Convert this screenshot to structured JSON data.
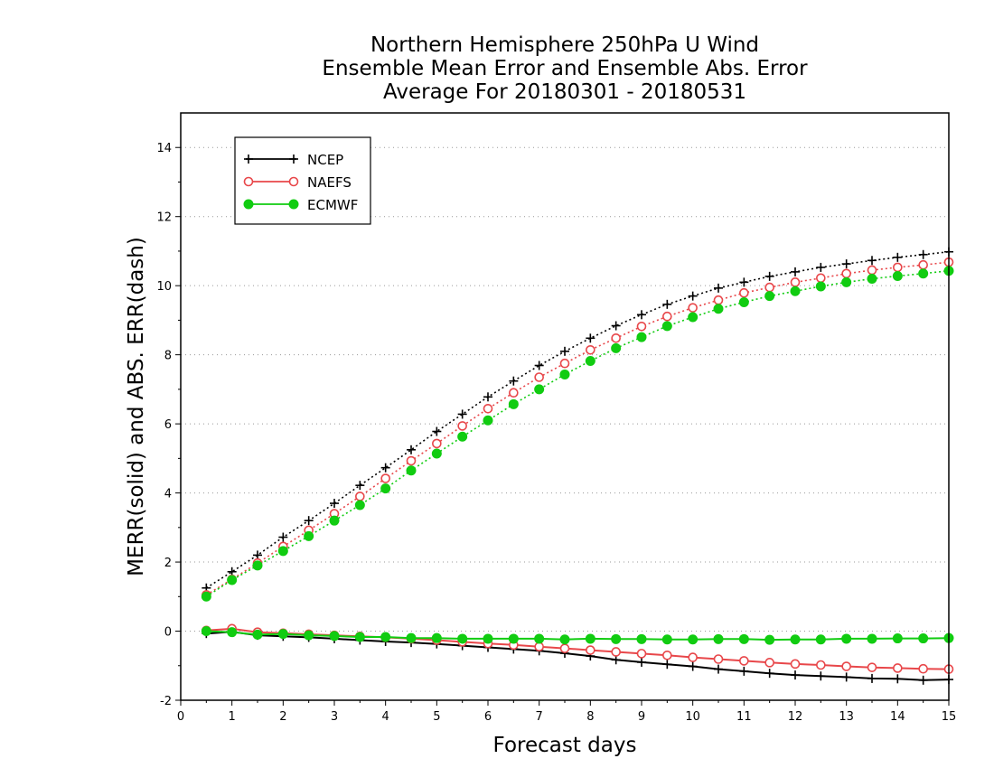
{
  "chart_data": {
    "type": "line",
    "title_lines": [
      "Northern Hemisphere 250hPa U Wind",
      "Ensemble Mean Error and Ensemble Abs. Error",
      "Average For 20180301 - 20180531"
    ],
    "xlabel": "Forecast days",
    "ylabel": "MERR(solid) and ABS. ERR(dash)",
    "xlim": [
      0,
      15
    ],
    "ylim": [
      -2,
      15
    ],
    "xticks": [
      0,
      1,
      2,
      3,
      4,
      5,
      6,
      7,
      8,
      9,
      10,
      11,
      12,
      13,
      14,
      15
    ],
    "yticks": [
      -2,
      0,
      2,
      4,
      6,
      8,
      10,
      12,
      14
    ],
    "grid": "horizontal dotted",
    "legend_position": "top-left",
    "x": [
      0.5,
      1,
      1.5,
      2,
      2.5,
      3,
      3.5,
      4,
      4.5,
      5,
      5.5,
      6,
      6.5,
      7,
      7.5,
      8,
      8.5,
      9,
      9.5,
      10,
      10.5,
      11,
      11.5,
      12,
      12.5,
      13,
      13.5,
      14,
      14.5,
      15
    ],
    "series": [
      {
        "name": "NCEP",
        "color": "#000000",
        "marker": "plus",
        "abs_error": [
          1.25,
          1.72,
          2.2,
          2.72,
          3.2,
          3.7,
          4.22,
          4.73,
          5.25,
          5.78,
          6.28,
          6.78,
          7.24,
          7.69,
          8.1,
          8.48,
          8.84,
          9.16,
          9.46,
          9.7,
          9.93,
          10.1,
          10.27,
          10.4,
          10.53,
          10.63,
          10.73,
          10.82,
          10.9,
          10.98
        ],
        "mean_error": [
          -0.07,
          -0.02,
          -0.12,
          -0.15,
          -0.18,
          -0.22,
          -0.26,
          -0.3,
          -0.33,
          -0.37,
          -0.42,
          -0.47,
          -0.52,
          -0.57,
          -0.64,
          -0.72,
          -0.83,
          -0.9,
          -0.96,
          -1.02,
          -1.1,
          -1.16,
          -1.22,
          -1.27,
          -1.3,
          -1.33,
          -1.37,
          -1.38,
          -1.42,
          -1.4
        ]
      },
      {
        "name": "NAEFS",
        "color": "#e8474a",
        "marker": "open-circle",
        "abs_error": [
          1.05,
          1.5,
          1.97,
          2.45,
          2.92,
          3.4,
          3.9,
          4.42,
          4.93,
          5.43,
          5.94,
          6.44,
          6.9,
          7.35,
          7.75,
          8.14,
          8.48,
          8.82,
          9.11,
          9.36,
          9.58,
          9.79,
          9.95,
          10.1,
          10.22,
          10.35,
          10.45,
          10.53,
          10.6,
          10.68
        ],
        "mean_error": [
          0.02,
          0.07,
          -0.03,
          -0.06,
          -0.09,
          -0.12,
          -0.15,
          -0.18,
          -0.22,
          -0.26,
          -0.31,
          -0.36,
          -0.4,
          -0.45,
          -0.5,
          -0.55,
          -0.6,
          -0.65,
          -0.7,
          -0.76,
          -0.81,
          -0.86,
          -0.91,
          -0.95,
          -0.98,
          -1.02,
          -1.05,
          -1.07,
          -1.09,
          -1.1
        ]
      },
      {
        "name": "ECMWF",
        "color": "#11cc11",
        "marker": "filled-circle",
        "abs_error": [
          1.0,
          1.48,
          1.9,
          2.32,
          2.75,
          3.2,
          3.65,
          4.13,
          4.65,
          5.14,
          5.63,
          6.1,
          6.57,
          7.0,
          7.43,
          7.82,
          8.19,
          8.51,
          8.83,
          9.09,
          9.33,
          9.52,
          9.7,
          9.84,
          9.98,
          10.1,
          10.2,
          10.28,
          10.35,
          10.43
        ],
        "mean_error": [
          0.0,
          -0.03,
          -0.1,
          -0.08,
          -0.12,
          -0.14,
          -0.17,
          -0.17,
          -0.2,
          -0.2,
          -0.22,
          -0.22,
          -0.22,
          -0.22,
          -0.24,
          -0.22,
          -0.23,
          -0.23,
          -0.24,
          -0.24,
          -0.23,
          -0.23,
          -0.25,
          -0.24,
          -0.24,
          -0.22,
          -0.22,
          -0.21,
          -0.21,
          -0.2
        ]
      }
    ]
  }
}
